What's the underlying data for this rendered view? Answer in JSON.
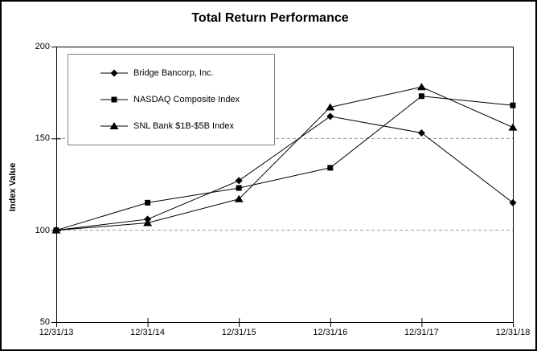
{
  "window": {
    "background": "#ffffff",
    "frame_border_color": "#000000"
  },
  "chart_data": {
    "type": "line",
    "title": "Total Return Performance",
    "xlabel": "",
    "ylabel": "Index Value",
    "x_tick_labels": [
      "12/31/13",
      "12/31/14",
      "12/31/15",
      "12/31/16",
      "12/31/17",
      "12/31/18"
    ],
    "y_ticks": [
      50,
      100,
      150,
      200
    ],
    "ylim": [
      50,
      200
    ],
    "grid_values": [
      100,
      150
    ],
    "grid_on": true,
    "grid_style": "dashed",
    "grid_color": "#999999",
    "axis_color": "#000000",
    "legend_position": "top-left-inside",
    "legend_border_color": "#808080",
    "series": [
      {
        "name": "Bridge Bancorp, Inc.",
        "marker": "diamond",
        "color": "#000000",
        "values": [
          100,
          106,
          127,
          162,
          153,
          115
        ]
      },
      {
        "name": "NASDAQ Composite Index",
        "marker": "square",
        "color": "#000000",
        "values": [
          100,
          115,
          123,
          134,
          173,
          168
        ]
      },
      {
        "name": "SNL Bank $1B-$5B Index",
        "marker": "triangle",
        "color": "#000000",
        "values": [
          100,
          104,
          117,
          167,
          178,
          156
        ]
      }
    ]
  }
}
